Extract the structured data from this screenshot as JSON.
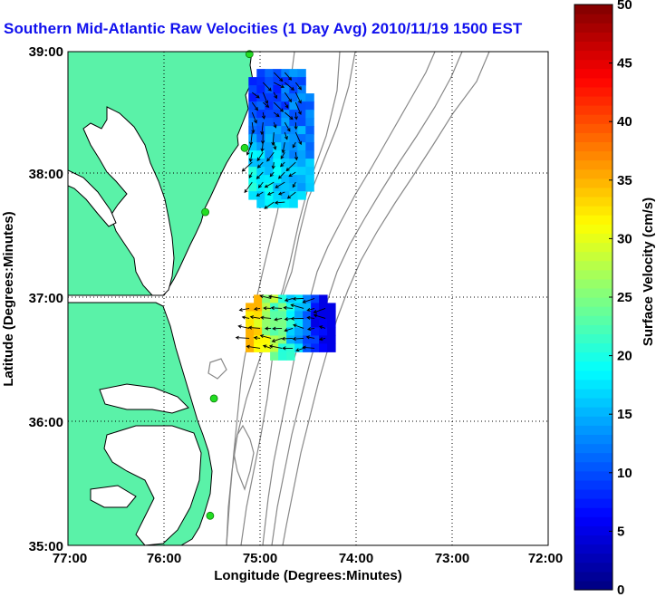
{
  "title": "Southern Mid-Atlantic Raw Velocities (1 Day Avg) 2010/11/19 1500 EST",
  "map": {
    "x_axis_label": "Longitude (Degrees:Minutes)",
    "y_axis_label": "Latitude (Degrees:Minutes)",
    "x_ticks": [
      "77:00",
      "76:00",
      "75:00",
      "74:00",
      "73:00",
      "72:00"
    ],
    "y_ticks": [
      "39:00",
      "38:00",
      "37:00",
      "36:00",
      "35:00"
    ],
    "lon_range": [
      -77,
      -72
    ],
    "lat_range": [
      35,
      39
    ],
    "grid": "dotted",
    "land_color": "#5af2a8",
    "contour_color": "#888888",
    "station_color": "#22dd22",
    "stations": [
      {
        "lon": -75.11,
        "lat": 38.98
      },
      {
        "lon": -75.16,
        "lat": 38.22
      },
      {
        "lon": -75.57,
        "lat": 37.7
      },
      {
        "lon": -75.48,
        "lat": 36.19
      },
      {
        "lon": -75.52,
        "lat": 35.24
      }
    ]
  },
  "colorbar": {
    "label": "Surface Velocity (cm/s)",
    "ticks": [
      "0",
      "5",
      "10",
      "15",
      "20",
      "25",
      "30",
      "35",
      "40",
      "45",
      "50"
    ],
    "min": 0,
    "max": 50,
    "colormap": "jet"
  },
  "velocity_regions": [
    {
      "name": "north",
      "lon": [
        -75.12,
        -74.52
      ],
      "lat": [
        37.74,
        38.86
      ],
      "speed_range_cm_s": [
        5,
        22
      ]
    },
    {
      "name": "south",
      "lon": [
        -75.15,
        -74.25
      ],
      "lat": [
        36.56,
        37.03
      ],
      "speed_range_cm_s": [
        5,
        35
      ]
    }
  ]
}
